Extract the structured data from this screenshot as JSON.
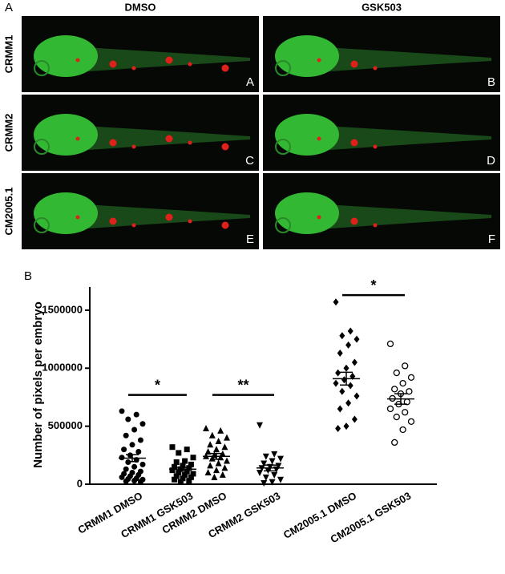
{
  "panel_a": {
    "label": "A",
    "columns": [
      "DMSO",
      "GSK503"
    ],
    "rows": [
      "CRMM1",
      "CRMM2",
      "CM2005.1"
    ],
    "images": [
      {
        "label": "A"
      },
      {
        "label": "B"
      },
      {
        "label": "C"
      },
      {
        "label": "D"
      },
      {
        "label": "E"
      },
      {
        "label": "F"
      }
    ]
  },
  "chart_data": {
    "type": "dot",
    "panel_label": "B",
    "y_label": "Number of pixels per embryo",
    "categories": [
      "CRMM1 DMSO",
      "CRMM1 GSK503",
      "CRMM2 DMSO",
      "CRMM2 GSK503",
      "CM2005.1 DMSO",
      "CM2005.1 GSK503"
    ],
    "markers": [
      "circle",
      "square",
      "triangle-up",
      "triangle-down",
      "diamond",
      "circle-open"
    ],
    "points": [
      [
        630000,
        600000,
        560000,
        520000,
        470000,
        420000,
        380000,
        340000,
        300000,
        280000,
        250000,
        230000,
        210000,
        190000,
        170000,
        150000,
        130000,
        110000,
        100000,
        90000,
        80000,
        70000,
        60000,
        50000,
        45000,
        40000,
        30000,
        25000,
        20000
      ],
      [
        320000,
        300000,
        270000,
        230000,
        200000,
        190000,
        170000,
        160000,
        150000,
        140000,
        130000,
        120000,
        110000,
        100000,
        90000,
        80000,
        70000,
        60000,
        50000,
        40000,
        30000,
        20000
      ],
      [
        480000,
        460000,
        420000,
        400000,
        370000,
        340000,
        320000,
        300000,
        280000,
        260000,
        250000,
        240000,
        230000,
        220000,
        200000,
        180000,
        160000,
        140000,
        120000,
        100000,
        80000,
        60000
      ],
      [
        510000,
        260000,
        240000,
        220000,
        200000,
        180000,
        160000,
        150000,
        140000,
        130000,
        120000,
        100000,
        80000,
        60000,
        40000,
        20000,
        10000
      ],
      [
        1570000,
        1320000,
        1280000,
        1250000,
        1200000,
        1130000,
        1050000,
        1000000,
        960000,
        930000,
        900000,
        870000,
        850000,
        800000,
        760000,
        700000,
        650000,
        560000,
        500000,
        480000
      ],
      [
        1210000,
        1020000,
        960000,
        920000,
        870000,
        820000,
        800000,
        780000,
        740000,
        710000,
        690000,
        650000,
        620000,
        580000,
        540000,
        470000,
        360000
      ]
    ],
    "means": [
      225000,
      130000,
      240000,
      140000,
      910000,
      735000
    ],
    "sems": [
      30000,
      15000,
      25000,
      25000,
      55000,
      45000
    ],
    "annotations": [
      {
        "text": "*",
        "from": 0,
        "to": 1,
        "value": 770000
      },
      {
        "text": "**",
        "from": 2,
        "to": 3,
        "value": 770000
      },
      {
        "text": "*",
        "from": 4,
        "to": 5,
        "value": 1630000
      }
    ],
    "ylim": [
      0,
      1700000
    ],
    "yticks": [
      0,
      500000,
      1000000,
      1500000
    ],
    "color": "#000000"
  }
}
